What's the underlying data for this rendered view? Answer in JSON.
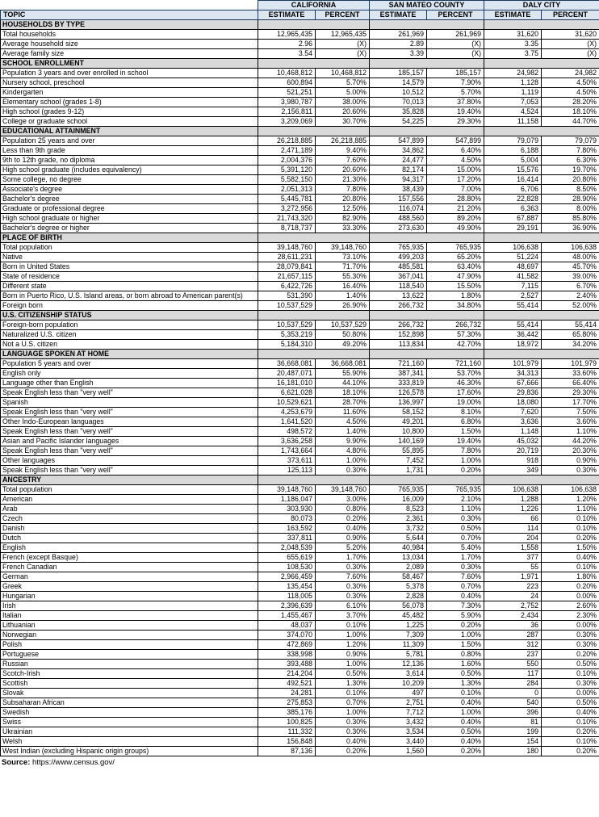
{
  "table": {
    "topic_header": "TOPIC",
    "column_groups": [
      "CALIFORNIA",
      "SAN MATEO COUNTY",
      "DALY CITY"
    ],
    "subheaders": [
      "ESTIMATE",
      "PERCENT",
      "ESTIMATE",
      "PERCENT",
      "ESTIMATE",
      "PERCENT"
    ],
    "sections": [
      {
        "title": "HOUSEHOLDS BY TYPE",
        "rows": [
          {
            "topic": "Total households",
            "values": [
              "12,965,435",
              "12,965,435",
              "261,969",
              "261,969",
              "31,620",
              "31,620"
            ]
          },
          {
            "topic": "Average household size",
            "values": [
              "2.96",
              "(X)",
              "2.89",
              "(X)",
              "3.35",
              "(X)"
            ]
          },
          {
            "topic": "Average family size",
            "values": [
              "3.54",
              "(X)",
              "3.39",
              "(X)",
              "3.75",
              "(X)"
            ]
          }
        ]
      },
      {
        "title": "SCHOOL ENROLLMENT",
        "rows": [
          {
            "topic": "Population 3 years and over enrolled in school",
            "values": [
              "10,468,812",
              "10,468,812",
              "185,157",
              "185,157",
              "24,982",
              "24,982"
            ]
          },
          {
            "topic": "Nursery school, preschool",
            "values": [
              "600,894",
              "5.70%",
              "14,579",
              "7.90%",
              "1,128",
              "4.50%"
            ]
          },
          {
            "topic": "Kindergarten",
            "values": [
              "521,251",
              "5.00%",
              "10,512",
              "5.70%",
              "1,119",
              "4.50%"
            ]
          },
          {
            "topic": "Elementary school (grades 1-8)",
            "values": [
              "3,980,787",
              "38.00%",
              "70,013",
              "37.80%",
              "7,053",
              "28.20%"
            ]
          },
          {
            "topic": "High school (grades 9-12)",
            "values": [
              "2,156,811",
              "20.60%",
              "35,828",
              "19.40%",
              "4,524",
              "18.10%"
            ]
          },
          {
            "topic": "College or graduate school",
            "values": [
              "3,209,069",
              "30.70%",
              "54,225",
              "29.30%",
              "11,158",
              "44.70%"
            ]
          }
        ]
      },
      {
        "title": "EDUCATIONAL ATTAINMENT",
        "rows": [
          {
            "topic": "Population 25 years and over",
            "values": [
              "26,218,885",
              "26,218,885",
              "547,899",
              "547,899",
              "79,079",
              "79,079"
            ]
          },
          {
            "topic": "Less than 9th grade",
            "values": [
              "2,471,189",
              "9.40%",
              "34,862",
              "6.40%",
              "6,188",
              "7.80%"
            ]
          },
          {
            "topic": "9th to 12th grade, no diploma",
            "values": [
              "2,004,376",
              "7.60%",
              "24,477",
              "4.50%",
              "5,004",
              "6.30%"
            ]
          },
          {
            "topic": "High school graduate (includes equivalency)",
            "values": [
              "5,391,120",
              "20.60%",
              "82,174",
              "15.00%",
              "15,576",
              "19.70%"
            ]
          },
          {
            "topic": "Some college, no degree",
            "values": [
              "5,582,150",
              "21.30%",
              "94,317",
              "17.20%",
              "16,414",
              "20.80%"
            ]
          },
          {
            "topic": "Associate's degree",
            "values": [
              "2,051,313",
              "7.80%",
              "38,439",
              "7.00%",
              "6,706",
              "8.50%"
            ]
          },
          {
            "topic": "Bachelor's degree",
            "values": [
              "5,445,781",
              "20.80%",
              "157,556",
              "28.80%",
              "22,828",
              "28.90%"
            ]
          },
          {
            "topic": "Graduate or professional degree",
            "values": [
              "3,272,956",
              "12.50%",
              "116,074",
              "21.20%",
              "6,363",
              "8.00%"
            ]
          },
          {
            "topic": "High school graduate or higher",
            "values": [
              "21,743,320",
              "82.90%",
              "488,560",
              "89.20%",
              "67,887",
              "85.80%"
            ]
          },
          {
            "topic": "Bachelor's degree or higher",
            "values": [
              "8,718,737",
              "33.30%",
              "273,630",
              "49.90%",
              "29,191",
              "36.90%"
            ]
          }
        ]
      },
      {
        "title": "PLACE OF BIRTH",
        "rows": [
          {
            "topic": "Total population",
            "values": [
              "39,148,760",
              "39,148,760",
              "765,935",
              "765,935",
              "106,638",
              "106,638"
            ]
          },
          {
            "topic": "Native",
            "values": [
              "28,611,231",
              "73.10%",
              "499,203",
              "65.20%",
              "51,224",
              "48.00%"
            ]
          },
          {
            "topic": "Born in United States",
            "values": [
              "28,079,841",
              "71.70%",
              "485,581",
              "63.40%",
              "48,697",
              "45.70%"
            ]
          },
          {
            "topic": "State of residence",
            "values": [
              "21,657,115",
              "55.30%",
              "367,041",
              "47.90%",
              "41,582",
              "39.00%"
            ]
          },
          {
            "topic": "Different state",
            "values": [
              "6,422,726",
              "16.40%",
              "118,540",
              "15.50%",
              "7,115",
              "6.70%"
            ]
          },
          {
            "topic": "Born in Puerto Rico, U.S. Island areas, or born abroad to American parent(s)",
            "values": [
              "531,390",
              "1.40%",
              "13,622",
              "1.80%",
              "2,527",
              "2.40%"
            ]
          },
          {
            "topic": "Foreign born",
            "values": [
              "10,537,529",
              "26.90%",
              "266,732",
              "34.80%",
              "55,414",
              "52.00%"
            ]
          }
        ]
      },
      {
        "title": "U.S. CITIZENSHIP STATUS",
        "rows": [
          {
            "topic": "Foreign-born population",
            "values": [
              "10,537,529",
              "10,537,529",
              "266,732",
              "266,732",
              "55,414",
              "55,414"
            ]
          },
          {
            "topic": "Naturalized U.S. citizen",
            "values": [
              "5,353,219",
              "50.80%",
              "152,898",
              "57.30%",
              "36,442",
              "65.80%"
            ]
          },
          {
            "topic": "Not a U.S. citizen",
            "values": [
              "5,184,310",
              "49.20%",
              "113,834",
              "42.70%",
              "18,972",
              "34.20%"
            ]
          }
        ]
      },
      {
        "title": "LANGUAGE SPOKEN AT HOME",
        "rows": [
          {
            "topic": "Population 5 years and over",
            "values": [
              "36,668,081",
              "36,668,081",
              "721,160",
              "721,160",
              "101,979",
              "101,979"
            ]
          },
          {
            "topic": "English only",
            "values": [
              "20,487,071",
              "55.90%",
              "387,341",
              "53.70%",
              "34,313",
              "33.60%"
            ]
          },
          {
            "topic": "Language other than English",
            "values": [
              "16,181,010",
              "44.10%",
              "333,819",
              "46.30%",
              "67,666",
              "66.40%"
            ]
          },
          {
            "topic": "Speak English less than \"very well\"",
            "values": [
              "6,621,028",
              "18.10%",
              "126,578",
              "17.60%",
              "29,836",
              "29.30%"
            ]
          },
          {
            "topic": "Spanish",
            "values": [
              "10,529,621",
              "28.70%",
              "136,997",
              "19.00%",
              "18,080",
              "17.70%"
            ]
          },
          {
            "topic": "Speak English less than \"very well\"",
            "values": [
              "4,253,679",
              "11.60%",
              "58,152",
              "8.10%",
              "7,620",
              "7.50%"
            ]
          },
          {
            "topic": "Other Indo-European languages",
            "values": [
              "1,641,520",
              "4.50%",
              "49,201",
              "6.80%",
              "3,636",
              "3.60%"
            ]
          },
          {
            "topic": "Speak English less than \"very well\"",
            "values": [
              "498,572",
              "1.40%",
              "10,800",
              "1.50%",
              "1,148",
              "1.10%"
            ]
          },
          {
            "topic": "Asian and Pacific Islander languages",
            "values": [
              "3,636,258",
              "9.90%",
              "140,169",
              "19.40%",
              "45,032",
              "44.20%"
            ]
          },
          {
            "topic": "Speak English less than \"very well\"",
            "values": [
              "1,743,664",
              "4.80%",
              "55,895",
              "7.80%",
              "20,719",
              "20.30%"
            ]
          },
          {
            "topic": "Other languages",
            "values": [
              "373,611",
              "1.00%",
              "7,452",
              "1.00%",
              "918",
              "0.90%"
            ]
          },
          {
            "topic": "Speak English less than \"very well\"",
            "values": [
              "125,113",
              "0.30%",
              "1,731",
              "0.20%",
              "349",
              "0.30%"
            ]
          }
        ]
      },
      {
        "title": "ANCESTRY",
        "rows": [
          {
            "topic": "Total population",
            "values": [
              "39,148,760",
              "39,148,760",
              "765,935",
              "765,935",
              "106,638",
              "106,638"
            ]
          },
          {
            "topic": "American",
            "values": [
              "1,186,047",
              "3.00%",
              "16,009",
              "2.10%",
              "1,288",
              "1.20%"
            ]
          },
          {
            "topic": "Arab",
            "values": [
              "303,930",
              "0.80%",
              "8,523",
              "1.10%",
              "1,226",
              "1.10%"
            ]
          },
          {
            "topic": "Czech",
            "values": [
              "80,073",
              "0.20%",
              "2,361",
              "0.30%",
              "66",
              "0.10%"
            ]
          },
          {
            "topic": "Danish",
            "values": [
              "163,592",
              "0.40%",
              "3,732",
              "0.50%",
              "114",
              "0.10%"
            ]
          },
          {
            "topic": "Dutch",
            "values": [
              "337,811",
              "0.90%",
              "5,644",
              "0.70%",
              "204",
              "0.20%"
            ]
          },
          {
            "topic": "English",
            "values": [
              "2,048,539",
              "5.20%",
              "40,984",
              "5.40%",
              "1,558",
              "1.50%"
            ]
          },
          {
            "topic": "French (except Basque)",
            "values": [
              "655,619",
              "1.70%",
              "13,034",
              "1.70%",
              "377",
              "0.40%"
            ]
          },
          {
            "topic": "French Canadian",
            "values": [
              "108,530",
              "0.30%",
              "2,089",
              "0.30%",
              "55",
              "0.10%"
            ]
          },
          {
            "topic": "German",
            "values": [
              "2,966,459",
              "7.60%",
              "58,467",
              "7.60%",
              "1,971",
              "1.80%"
            ]
          },
          {
            "topic": "Greek",
            "values": [
              "135,454",
              "0.30%",
              "5,378",
              "0.70%",
              "223",
              "0.20%"
            ]
          },
          {
            "topic": "Hungarian",
            "values": [
              "118,005",
              "0.30%",
              "2,828",
              "0.40%",
              "24",
              "0.00%"
            ]
          },
          {
            "topic": "Irish",
            "values": [
              "2,396,639",
              "6.10%",
              "56,078",
              "7.30%",
              "2,752",
              "2.60%"
            ]
          },
          {
            "topic": "Italian",
            "values": [
              "1,455,467",
              "3.70%",
              "45,482",
              "5.90%",
              "2,434",
              "2.30%"
            ]
          },
          {
            "topic": "Lithuanian",
            "values": [
              "48,037",
              "0.10%",
              "1,225",
              "0.20%",
              "36",
              "0.00%"
            ]
          },
          {
            "topic": "Norwegian",
            "values": [
              "374,070",
              "1.00%",
              "7,309",
              "1.00%",
              "287",
              "0.30%"
            ]
          },
          {
            "topic": "Polish",
            "values": [
              "472,869",
              "1.20%",
              "11,309",
              "1.50%",
              "312",
              "0.30%"
            ]
          },
          {
            "topic": "Portuguese",
            "values": [
              "338,998",
              "0.90%",
              "5,781",
              "0.80%",
              "237",
              "0.20%"
            ]
          },
          {
            "topic": "Russian",
            "values": [
              "393,488",
              "1.00%",
              "12,136",
              "1.60%",
              "550",
              "0.50%"
            ]
          },
          {
            "topic": "Scotch-Irish",
            "values": [
              "214,204",
              "0.50%",
              "3,614",
              "0.50%",
              "117",
              "0.10%"
            ]
          },
          {
            "topic": "Scottish",
            "values": [
              "492,521",
              "1.30%",
              "10,209",
              "1.30%",
              "284",
              "0.30%"
            ]
          },
          {
            "topic": "Slovak",
            "values": [
              "24,281",
              "0.10%",
              "497",
              "0.10%",
              "0",
              "0.00%"
            ]
          },
          {
            "topic": "Subsaharan African",
            "values": [
              "275,853",
              "0.70%",
              "2,751",
              "0.40%",
              "540",
              "0.50%"
            ]
          },
          {
            "topic": "Swedish",
            "values": [
              "385,176",
              "1.00%",
              "7,712",
              "1.00%",
              "396",
              "0.40%"
            ]
          },
          {
            "topic": "Swiss",
            "values": [
              "100,825",
              "0.30%",
              "3,432",
              "0.40%",
              "81",
              "0.10%"
            ]
          },
          {
            "topic": "Ukrainian",
            "values": [
              "111,332",
              "0.30%",
              "3,534",
              "0.50%",
              "199",
              "0.20%"
            ]
          },
          {
            "topic": "Welsh",
            "values": [
              "156,848",
              "0.40%",
              "3,440",
              "0.40%",
              "154",
              "0.10%"
            ]
          },
          {
            "topic": "West Indian (excluding Hispanic origin groups)",
            "values": [
              "87,136",
              "0.20%",
              "1,560",
              "0.20%",
              "180",
              "0.20%"
            ]
          }
        ]
      }
    ]
  },
  "source": {
    "label": "Source:",
    "url": "https://www.census.gov/"
  },
  "colors": {
    "header_bg": "#dce6f1",
    "header_border": "#17375e",
    "section_bg": "#d9d9d9",
    "grid_border": "#000000"
  }
}
